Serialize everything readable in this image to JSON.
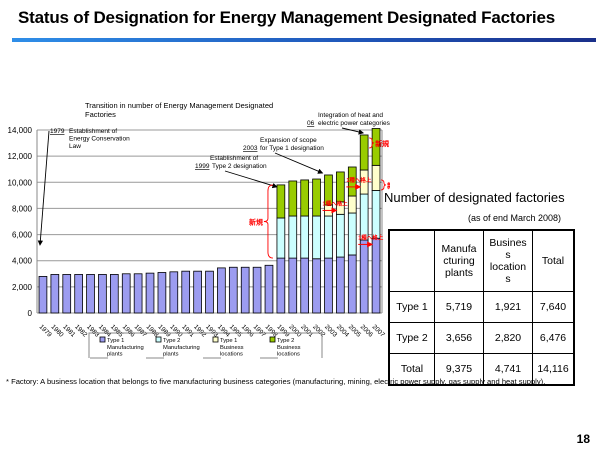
{
  "page": {
    "title": "Status of Designation for Energy Management Designated Factories",
    "footnote": "* Factory: A business location that belongs to five manufacturing business categories (manufacturing, mining, electric power supply, gas supply and heat supply).",
    "page_number": "18"
  },
  "colors": {
    "type1_mfg": "#9c9cf0",
    "type2_mfg": "#ccffff",
    "type1_biz": "#ffffcc",
    "type2_biz": "#99cc00",
    "accent_red": "#ff0000",
    "title_bar_start": "#2f8ee8",
    "title_bar_end": "#1a2f8a"
  },
  "chart_data": {
    "type": "bar",
    "stacked": true,
    "title": "Transition in number of Energy Management Designated Factories",
    "xlabel": "",
    "ylabel": "",
    "ylim": [
      0,
      14000
    ],
    "yticks": [
      0,
      2000,
      4000,
      6000,
      8000,
      10000,
      12000,
      14000
    ],
    "ytick_labels": [
      "0",
      "2,000",
      "4,000",
      "6,000",
      "8,000",
      "10,000",
      "12,000",
      "14,000"
    ],
    "grid": true,
    "categories": [
      "1979",
      "1980",
      "1981",
      "1982",
      "1983",
      "1984",
      "1985",
      "1986",
      "1987",
      "1988",
      "1989",
      "1990",
      "1991",
      "1992",
      "1993",
      "1994",
      "1995",
      "1996",
      "1997",
      "1998",
      "1999",
      "2000",
      "2001",
      "2002",
      "2003",
      "2004",
      "2005",
      "2006",
      "2007"
    ],
    "series": [
      {
        "name": "Type 1 Manufacturing plants",
        "color_key": "type1_mfg",
        "values": [
          2800,
          2950,
          2950,
          2950,
          2950,
          2950,
          2950,
          3000,
          3000,
          3050,
          3100,
          3150,
          3200,
          3200,
          3200,
          3450,
          3500,
          3500,
          3500,
          3650,
          4200,
          4200,
          4200,
          4150,
          4200,
          4280,
          4440,
          5590,
          5719
        ]
      },
      {
        "name": "Type 2 Manufacturing plants",
        "color_key": "type2_mfg",
        "values": [
          0,
          0,
          0,
          0,
          0,
          0,
          0,
          0,
          0,
          0,
          0,
          0,
          0,
          0,
          0,
          0,
          0,
          0,
          0,
          0,
          3070,
          3220,
          3220,
          3270,
          3220,
          3270,
          3210,
          3510,
          3656
        ]
      },
      {
        "name": "Type 1 Business locations",
        "color_key": "type1_biz",
        "values": [
          0,
          0,
          0,
          0,
          0,
          0,
          0,
          0,
          0,
          0,
          0,
          0,
          0,
          0,
          0,
          0,
          0,
          0,
          0,
          0,
          0,
          0,
          0,
          0,
          840,
          950,
          1300,
          1840,
          1921
        ]
      },
      {
        "name": "Type 2 Business locations",
        "color_key": "type2_biz",
        "values": [
          0,
          0,
          0,
          0,
          0,
          0,
          0,
          0,
          0,
          0,
          0,
          0,
          0,
          0,
          0,
          0,
          0,
          0,
          0,
          0,
          2530,
          2680,
          2760,
          2830,
          2300,
          2290,
          2220,
          2680,
          2820
        ]
      }
    ],
    "legend": {
      "placement": "bottom",
      "entries": [
        "Type 1 Manufacturing plants",
        "Type 2 Manufacturing plants",
        "Type 1 Business locations",
        "Type 2 Business locations"
      ]
    },
    "annotations": [
      {
        "year_label": "1979",
        "text": "Establishment of Energy Conservation Law",
        "target_category": "1979"
      },
      {
        "year_label": "1999",
        "text": "Establishment of Type 2 designation",
        "target_category": "1999"
      },
      {
        "year_label": "2003",
        "text": "Expansion of scope for Type 1 designation",
        "target_category": "2003"
      },
      {
        "year_label": "06",
        "text": "Integration of heat and electric power categories",
        "target_category": "2006"
      },
      {
        "text": "新規",
        "target_category": "1999",
        "kind": "red-bracket"
      },
      {
        "text": "新規",
        "target_category": "2007",
        "kind": "red-bracket"
      },
      {
        "text": "1種へ格上",
        "target_category": "2003",
        "kind": "red-arrow"
      },
      {
        "text": "1種へ格上",
        "target_category": "2006",
        "kind": "red-arrow"
      }
    ]
  },
  "summary_table": {
    "title": "Number of designated factories",
    "subtitle": "(as of end March 2008)",
    "headers": [
      "",
      "Manufa cturing plants",
      "Busines s location s",
      "Total"
    ],
    "rows": [
      [
        "Type 1",
        "5,719",
        "1,921",
        "7,640"
      ],
      [
        "Type 2",
        "3,656",
        "2,820",
        "6,476"
      ],
      [
        "Total",
        "9,375",
        "4,741",
        "14,116"
      ]
    ]
  }
}
